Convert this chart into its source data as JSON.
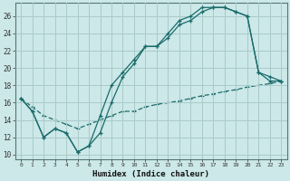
{
  "title": "",
  "xlabel": "Humidex (Indice chaleur)",
  "bg_color": "#cce8e8",
  "grid_color": "#aacaca",
  "line_color": "#1a6b6b",
  "xlim": [
    -0.5,
    23.5
  ],
  "ylim": [
    9.5,
    27.5
  ],
  "xticks": [
    0,
    1,
    2,
    3,
    4,
    5,
    6,
    7,
    8,
    9,
    10,
    11,
    12,
    13,
    14,
    15,
    16,
    17,
    18,
    19,
    20,
    21,
    22,
    23
  ],
  "yticks": [
    10,
    12,
    14,
    16,
    18,
    20,
    22,
    24,
    26
  ],
  "line1_x": [
    0,
    1,
    2,
    3,
    4,
    5,
    6,
    7,
    8,
    9,
    10,
    11,
    12,
    13,
    14,
    15,
    16,
    17,
    18,
    19,
    20,
    21,
    22,
    23
  ],
  "line1_y": [
    16.5,
    15.0,
    12.0,
    13.0,
    12.5,
    10.3,
    11.0,
    14.5,
    18.0,
    19.5,
    21.0,
    22.5,
    22.5,
    24.0,
    25.5,
    26.0,
    27.0,
    27.0,
    27.0,
    26.5,
    26.0,
    19.5,
    19.0,
    18.5
  ],
  "line2_x": [
    0,
    1,
    2,
    3,
    4,
    5,
    6,
    7,
    8,
    9,
    10,
    11,
    12,
    13,
    14,
    15,
    16,
    17,
    18,
    19,
    20,
    21,
    22,
    23
  ],
  "line2_y": [
    16.5,
    15.0,
    12.0,
    13.0,
    12.5,
    10.3,
    11.0,
    12.5,
    16.0,
    19.0,
    20.5,
    22.5,
    22.5,
    23.5,
    25.0,
    25.5,
    26.5,
    27.0,
    27.0,
    26.5,
    26.0,
    19.5,
    18.5,
    18.5
  ],
  "line3_x": [
    0,
    1,
    2,
    3,
    4,
    5,
    6,
    7,
    8,
    9,
    10,
    11,
    12,
    13,
    14,
    15,
    16,
    17,
    18,
    19,
    20,
    21,
    22,
    23
  ],
  "line3_y": [
    16.5,
    15.5,
    14.5,
    14.0,
    13.5,
    13.0,
    13.5,
    14.0,
    14.5,
    15.0,
    15.0,
    15.5,
    15.8,
    16.0,
    16.2,
    16.5,
    16.8,
    17.0,
    17.3,
    17.5,
    17.8,
    18.0,
    18.2,
    18.5
  ]
}
